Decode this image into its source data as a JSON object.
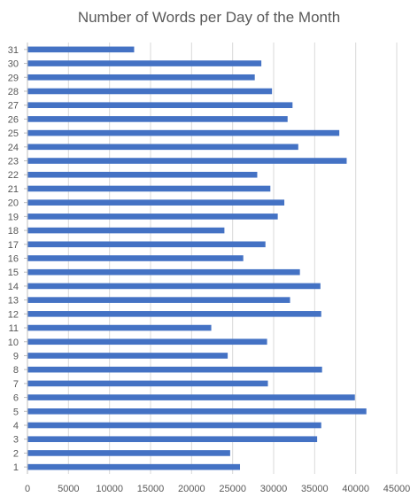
{
  "chart_data": {
    "type": "bar",
    "orientation": "horizontal",
    "title": "Number of Words per Day of the Month",
    "xlabel": "",
    "ylabel": "",
    "xlim": [
      0,
      45000
    ],
    "x_ticks": [
      "0",
      "5000",
      "10000",
      "15000",
      "20000",
      "25000",
      "30000",
      "35000",
      "40000",
      "45000"
    ],
    "categories": [
      "1",
      "2",
      "3",
      "4",
      "5",
      "6",
      "7",
      "8",
      "9",
      "10",
      "11",
      "12",
      "13",
      "14",
      "15",
      "16",
      "17",
      "18",
      "19",
      "20",
      "21",
      "22",
      "23",
      "24",
      "25",
      "26",
      "27",
      "28",
      "29",
      "30",
      "31"
    ],
    "values": [
      25900,
      24700,
      35300,
      35800,
      41300,
      39900,
      29300,
      35900,
      24400,
      29200,
      22400,
      35800,
      32000,
      35700,
      33200,
      26300,
      29000,
      24000,
      30500,
      31300,
      29600,
      28000,
      38900,
      33000,
      38000,
      31700,
      32300,
      29800,
      27700,
      28500,
      13000
    ],
    "bar_color": "#4472C4",
    "grid": true,
    "grid_axis": "x",
    "legend": "none"
  }
}
